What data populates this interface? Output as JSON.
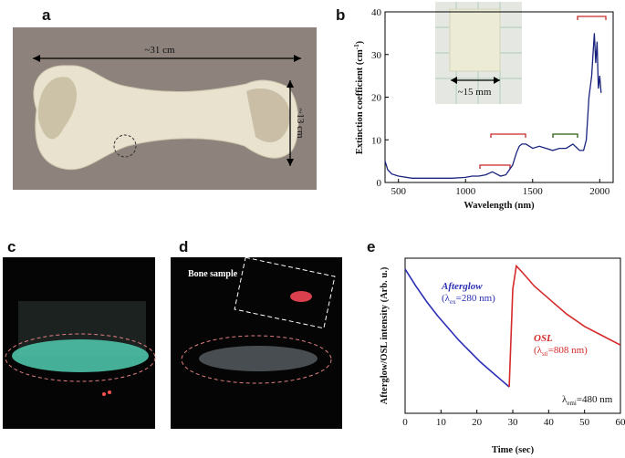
{
  "panels": {
    "a": "a",
    "b": "b",
    "c": "c",
    "d": "d",
    "e": "e"
  },
  "photo_a": {
    "length": "~31 cm",
    "width": "~13 cm"
  },
  "inset_b": {
    "size": "~15 mm"
  },
  "photo_d": {
    "label": "Bone sample"
  },
  "chart_data": [
    {
      "type": "line",
      "xlabel": "Wavelength (nm)",
      "ylabel": {
        "pre": "Extinction coefficient (cm",
        "sup": "-1",
        "post": ")"
      },
      "x": [
        400,
        420,
        450,
        500,
        600,
        700,
        800,
        900,
        1000,
        1050,
        1100,
        1150,
        1200,
        1230,
        1260,
        1300,
        1350,
        1380,
        1400,
        1420,
        1450,
        1500,
        1550,
        1600,
        1650,
        1700,
        1750,
        1800,
        1850,
        1880,
        1900,
        1920,
        1940,
        1950,
        1960,
        1970,
        1980,
        1990,
        2000,
        2010
      ],
      "values": [
        5,
        3,
        2,
        1.5,
        1,
        1,
        1,
        1,
        1.2,
        1.5,
        1.5,
        1.8,
        2.5,
        2,
        1.5,
        1.8,
        4,
        7,
        8.5,
        9,
        9,
        8,
        8.5,
        8,
        7.5,
        8,
        8,
        9,
        7.5,
        7.5,
        10,
        20,
        25,
        30,
        35,
        28,
        33,
        22,
        25,
        21
      ],
      "color": "#1a237e",
      "xlim": [
        400,
        2100
      ],
      "xticks": [
        500,
        1000,
        1500,
        2000
      ],
      "ylim": [
        0,
        40
      ],
      "yticks": [
        0,
        10,
        20,
        30,
        40
      ]
    },
    {
      "type": "line",
      "xlabel": "Time (sec)",
      "ylabel": "Afterglow/OSL intensity (Arb. u.)",
      "x": [
        0,
        3,
        6,
        9,
        12,
        15,
        18,
        21,
        24,
        27,
        29,
        30,
        31,
        33,
        36,
        40,
        45,
        50,
        55,
        60
      ],
      "series": [
        {
          "name": "Afterglow",
          "color": "#2b2fb5",
          "values": [
            0.93,
            0.82,
            0.72,
            0.63,
            0.55,
            0.47,
            0.4,
            0.33,
            0.27,
            0.21,
            0.17,
            null,
            null,
            null,
            null,
            null,
            null,
            null,
            null,
            null
          ]
        },
        {
          "name": "OSL",
          "color": "#d42a2a",
          "values": [
            null,
            null,
            null,
            null,
            null,
            null,
            null,
            null,
            null,
            null,
            0.17,
            0.8,
            0.95,
            0.9,
            0.82,
            0.74,
            0.64,
            0.56,
            0.5,
            0.44
          ]
        }
      ],
      "annotations": [
        {
          "pre": "(λ",
          "sub": "ex",
          "post": "=280 nm)"
        },
        {
          "pre": "(λ",
          "sub": "sti",
          "post": "=808 nm)"
        },
        {
          "pre": "λ",
          "sub": "emi",
          "post": "=480 nm"
        }
      ],
      "xlim": [
        0,
        60
      ],
      "xticks": [
        0,
        10,
        20,
        30,
        40,
        50,
        60
      ],
      "ylim": [
        0,
        1
      ]
    }
  ]
}
